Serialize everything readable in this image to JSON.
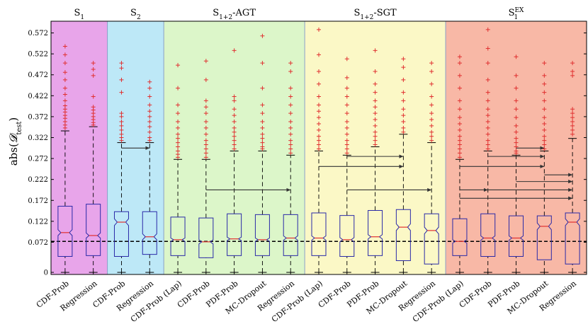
{
  "chart_data": {
    "type": "boxplot",
    "title": "",
    "ylabel_base": "abs(",
    "ylabel_sym": "𝓓",
    "ylabel_sub": "test",
    "ylabel_close": ")",
    "ylim": [
      -0.005,
      0.6
    ],
    "yticks": [
      0,
      0.072,
      0.122,
      0.172,
      0.222,
      0.272,
      0.322,
      0.372,
      0.422,
      0.472,
      0.522,
      0.572
    ],
    "yticklabels": [
      "0",
      "0.072",
      "0.122",
      "0.172",
      "0.222",
      "0.272",
      "0.322",
      "0.372",
      "0.422",
      "0.472",
      "0.522",
      "0.572"
    ],
    "reference_line": 0.074,
    "groups": [
      {
        "name": "S1",
        "main": "S",
        "sub": "1",
        "sup": "",
        "color": "#e8a5ea",
        "start": 0,
        "end": 1
      },
      {
        "name": "S2",
        "main": "S",
        "sub": "2",
        "sup": "",
        "color": "#bde8f7",
        "start": 2,
        "end": 3
      },
      {
        "name": "S1+2-AGT",
        "main": "S",
        "sub": "1+2",
        "sup": "",
        "suffix": "-AGT",
        "color": "#dcf6c9",
        "start": 4,
        "end": 8
      },
      {
        "name": "S1+2-SGT",
        "main": "S",
        "sub": "1+2",
        "sup": "",
        "suffix": "-SGT",
        "color": "#fbf8c6",
        "start": 9,
        "end": 13
      },
      {
        "name": "S1EX",
        "main": "S",
        "sub": "1",
        "sup": "EX",
        "color": "#f8b8a6",
        "start": 14,
        "end": 18
      }
    ],
    "categories": [
      "CDF-Prob",
      "Regression",
      "CDF-Prob",
      "Regression",
      "CDF-Prob (Lap)",
      "CDF-Prob",
      "PDF-Prob",
      "MC-Dropout",
      "Regression",
      "CDF-Prob (Lap)",
      "CDF-Prob",
      "PDF-Prob",
      "MC-Dropout",
      "Regression",
      "CDF-Prob (Lap)",
      "CDF-Prob",
      "PDF-Prob",
      "MC-Dropout",
      "Regression"
    ],
    "series": [
      {
        "name": "CDF-Prob",
        "q1": 0.038,
        "median": 0.095,
        "q3": 0.158,
        "notch_lo": 0.088,
        "notch_hi": 0.102,
        "whisker_hi": 0.338,
        "outliers": [
          0.345,
          0.352,
          0.36,
          0.368,
          0.375,
          0.383,
          0.39,
          0.398,
          0.41,
          0.425,
          0.44,
          0.46,
          0.478,
          0.5,
          0.52,
          0.54
        ]
      },
      {
        "name": "Regression",
        "q1": 0.04,
        "median": 0.088,
        "q3": 0.163,
        "notch_lo": 0.082,
        "notch_hi": 0.094,
        "whisker_hi": 0.348,
        "outliers": [
          0.352,
          0.358,
          0.365,
          0.372,
          0.38,
          0.388,
          0.395,
          0.42,
          0.47,
          0.485,
          0.5
        ]
      },
      {
        "name": "CDF-Prob",
        "q1": 0.038,
        "median": 0.12,
        "q3": 0.145,
        "notch_lo": 0.112,
        "notch_hi": 0.128,
        "whisker_hi": 0.31,
        "outliers": [
          0.315,
          0.322,
          0.33,
          0.34,
          0.35,
          0.36,
          0.372,
          0.38,
          0.43,
          0.46,
          0.488,
          0.5
        ]
      },
      {
        "name": "Regression",
        "q1": 0.043,
        "median": 0.085,
        "q3": 0.145,
        "notch_lo": 0.078,
        "notch_hi": 0.092,
        "whisker_hi": 0.31,
        "outliers": [
          0.315,
          0.322,
          0.335,
          0.348,
          0.36,
          0.372,
          0.385,
          0.4,
          0.42,
          0.44,
          0.455
        ]
      },
      {
        "name": "CDF-Prob (Lap)",
        "q1": 0.04,
        "median": 0.078,
        "q3": 0.132,
        "notch_lo": 0.074,
        "notch_hi": 0.082,
        "whisker_hi": 0.27,
        "outliers": [
          0.275,
          0.282,
          0.29,
          0.3,
          0.31,
          0.32,
          0.33,
          0.345,
          0.36,
          0.38,
          0.4,
          0.44,
          0.495
        ]
      },
      {
        "name": "CDF-Prob",
        "q1": 0.035,
        "median": 0.073,
        "q3": 0.13,
        "notch_lo": 0.068,
        "notch_hi": 0.078,
        "whisker_hi": 0.27,
        "outliers": [
          0.275,
          0.285,
          0.295,
          0.305,
          0.315,
          0.33,
          0.345,
          0.36,
          0.38,
          0.395,
          0.41,
          0.46,
          0.505
        ]
      },
      {
        "name": "PDF-Prob",
        "q1": 0.04,
        "median": 0.08,
        "q3": 0.14,
        "notch_lo": 0.076,
        "notch_hi": 0.084,
        "whisker_hi": 0.29,
        "outliers": [
          0.295,
          0.305,
          0.315,
          0.325,
          0.335,
          0.345,
          0.36,
          0.375,
          0.39,
          0.41,
          0.42,
          0.53
        ]
      },
      {
        "name": "MC-Dropout",
        "q1": 0.04,
        "median": 0.078,
        "q3": 0.138,
        "notch_lo": 0.074,
        "notch_hi": 0.082,
        "whisker_hi": 0.29,
        "outliers": [
          0.295,
          0.3,
          0.31,
          0.32,
          0.33,
          0.345,
          0.36,
          0.38,
          0.4,
          0.44,
          0.5,
          0.565
        ]
      },
      {
        "name": "Regression",
        "q1": 0.04,
        "median": 0.082,
        "q3": 0.138,
        "notch_lo": 0.077,
        "notch_hi": 0.087,
        "whisker_hi": 0.28,
        "outliers": [
          0.285,
          0.295,
          0.305,
          0.315,
          0.33,
          0.345,
          0.36,
          0.38,
          0.4,
          0.42,
          0.44,
          0.48,
          0.5
        ]
      },
      {
        "name": "CDF-Prob (Lap)",
        "q1": 0.04,
        "median": 0.082,
        "q3": 0.142,
        "notch_lo": 0.077,
        "notch_hi": 0.087,
        "whisker_hi": 0.29,
        "outliers": [
          0.295,
          0.305,
          0.315,
          0.325,
          0.34,
          0.355,
          0.37,
          0.385,
          0.4,
          0.42,
          0.45,
          0.48,
          0.52,
          0.58
        ]
      },
      {
        "name": "CDF-Prob",
        "q1": 0.038,
        "median": 0.078,
        "q3": 0.136,
        "notch_lo": 0.073,
        "notch_hi": 0.083,
        "whisker_hi": 0.28,
        "outliers": [
          0.285,
          0.295,
          0.305,
          0.315,
          0.33,
          0.345,
          0.36,
          0.38,
          0.4,
          0.42,
          0.44,
          0.465,
          0.51
        ]
      },
      {
        "name": "PDF-Prob",
        "q1": 0.04,
        "median": 0.085,
        "q3": 0.148,
        "notch_lo": 0.08,
        "notch_hi": 0.09,
        "whisker_hi": 0.3,
        "outliers": [
          0.305,
          0.315,
          0.325,
          0.335,
          0.35,
          0.365,
          0.38,
          0.395,
          0.41,
          0.43,
          0.45,
          0.48,
          0.53
        ]
      },
      {
        "name": "MC-Dropout",
        "q1": 0.028,
        "median": 0.108,
        "q3": 0.15,
        "notch_lo": 0.1,
        "notch_hi": 0.116,
        "whisker_hi": 0.33,
        "outliers": [
          0.335,
          0.345,
          0.36,
          0.375,
          0.39,
          0.41,
          0.43,
          0.46,
          0.49,
          0.51
        ]
      },
      {
        "name": "Regression",
        "q1": 0.02,
        "median": 0.1,
        "q3": 0.14,
        "notch_lo": 0.092,
        "notch_hi": 0.108,
        "whisker_hi": 0.31,
        "outliers": [
          0.315,
          0.325,
          0.335,
          0.35,
          0.365,
          0.38,
          0.4,
          0.42,
          0.45,
          0.48,
          0.5
        ]
      },
      {
        "name": "CDF-Prob (Lap)",
        "q1": 0.04,
        "median": 0.074,
        "q3": 0.128,
        "notch_lo": 0.07,
        "notch_hi": 0.078,
        "whisker_hi": 0.27,
        "outliers": [
          0.275,
          0.285,
          0.295,
          0.305,
          0.315,
          0.325,
          0.34,
          0.355,
          0.37,
          0.39,
          0.41,
          0.44,
          0.47,
          0.5,
          0.515
        ]
      },
      {
        "name": "CDF-Prob",
        "q1": 0.038,
        "median": 0.082,
        "q3": 0.14,
        "notch_lo": 0.077,
        "notch_hi": 0.087,
        "whisker_hi": 0.29,
        "outliers": [
          0.295,
          0.305,
          0.315,
          0.33,
          0.345,
          0.36,
          0.375,
          0.39,
          0.41,
          0.43,
          0.46,
          0.5,
          0.535,
          0.58
        ]
      },
      {
        "name": "PDF-Prob",
        "q1": 0.038,
        "median": 0.082,
        "q3": 0.135,
        "notch_lo": 0.077,
        "notch_hi": 0.087,
        "whisker_hi": 0.28,
        "outliers": [
          0.285,
          0.29,
          0.3,
          0.31,
          0.32,
          0.335,
          0.35,
          0.37,
          0.39,
          0.41,
          0.44,
          0.47,
          0.515
        ]
      },
      {
        "name": "MC-Dropout",
        "q1": 0.03,
        "median": 0.11,
        "q3": 0.135,
        "notch_lo": 0.102,
        "notch_hi": 0.118,
        "whisker_hi": 0.29,
        "outliers": [
          0.295,
          0.305,
          0.315,
          0.325,
          0.34,
          0.355,
          0.37,
          0.39,
          0.41,
          0.43,
          0.45,
          0.47,
          0.5
        ]
      },
      {
        "name": "Regression",
        "q1": 0.02,
        "median": 0.12,
        "q3": 0.142,
        "notch_lo": 0.112,
        "notch_hi": 0.128,
        "whisker_hi": 0.32,
        "outliers": [
          0.33,
          0.34,
          0.35,
          0.36,
          0.37,
          0.38,
          0.39,
          0.47,
          0.48,
          0.5
        ]
      }
    ],
    "arrows": [
      {
        "from": 2,
        "to": 3,
        "y": 0.297
      },
      {
        "from": 5,
        "to": 8,
        "y": 0.197
      },
      {
        "from": 10,
        "to": 12,
        "y": 0.277
      },
      {
        "from": 9,
        "to": 12,
        "y": 0.253
      },
      {
        "from": 10,
        "to": 13,
        "y": 0.197
      },
      {
        "from": 16,
        "to": 17,
        "y": 0.297
      },
      {
        "from": 15,
        "to": 17,
        "y": 0.277
      },
      {
        "from": 14,
        "to": 17,
        "y": 0.253
      },
      {
        "from": 17,
        "to": 18,
        "y": 0.233
      },
      {
        "from": 16,
        "to": 18,
        "y": 0.217
      },
      {
        "from": 14,
        "to": 15,
        "y": 0.197
      },
      {
        "from": 15,
        "to": 18,
        "y": 0.197
      },
      {
        "from": 14,
        "to": 18,
        "y": 0.177
      }
    ],
    "colors": {
      "box": "#2a2aa8",
      "outlier": "#e03030",
      "whisker": "#000000",
      "arrow": "#333333",
      "divider": "#8aa0c8"
    }
  }
}
